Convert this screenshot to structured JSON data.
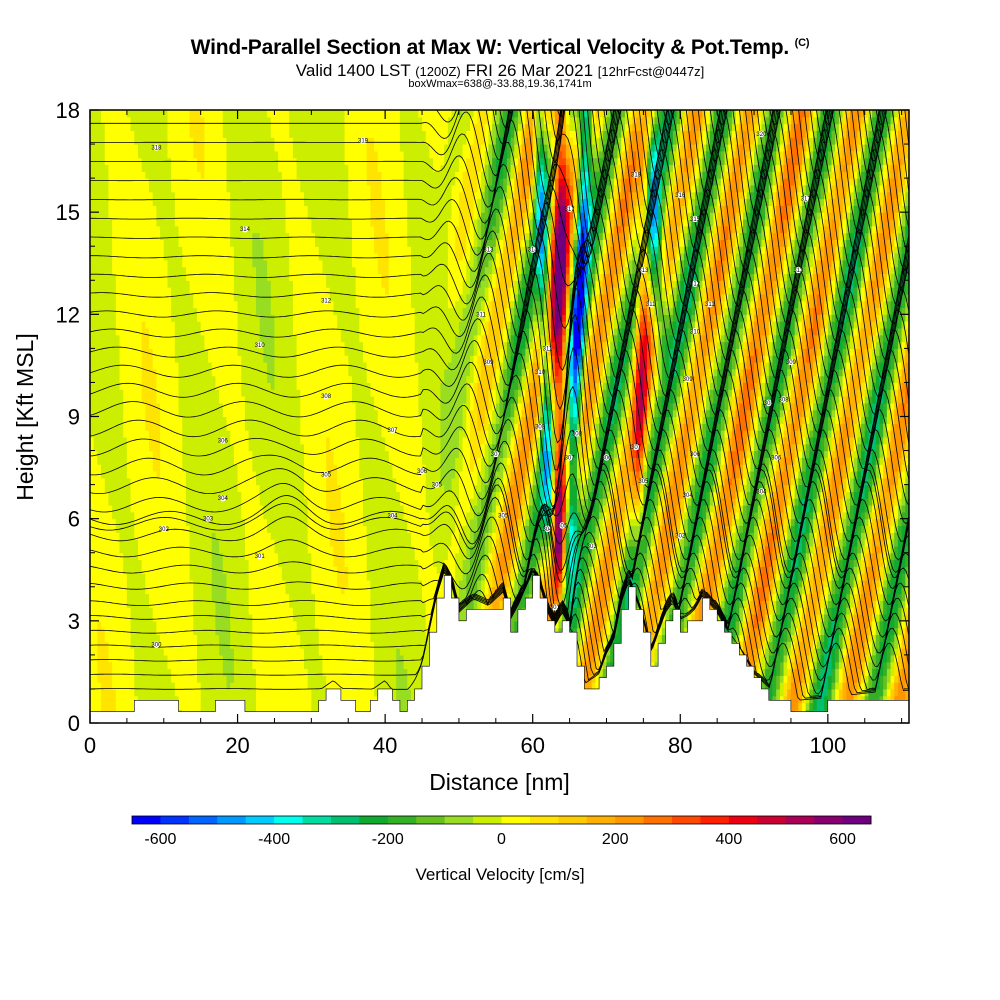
{
  "chart_data": {
    "type": "heatmap",
    "title": "Wind-Parallel Section at Max W: Vertical Velocity & Pot.Temp.",
    "copyright": "(C)",
    "subtitle_prefix": "Valid 1400 LST",
    "subtitle_utc": "(1200Z)",
    "subtitle_date": "FRI 26 Mar 2021",
    "subtitle_fcst": "[12hrFcst@0447z]",
    "box_info": "boxWmax=638@-33.88,19.36,1741m",
    "xlabel": "Distance [nm]",
    "ylabel": "Height [Kft MSL]",
    "xlim": [
      0,
      111
    ],
    "ylim": [
      0,
      18
    ],
    "x_ticks": [
      0,
      20,
      40,
      60,
      80,
      100
    ],
    "y_ticks": [
      0,
      3,
      6,
      9,
      12,
      15,
      18
    ],
    "x_tick_labels": [
      "0",
      "20",
      "40",
      "60",
      "80",
      "100"
    ],
    "y_tick_labels": [
      "0",
      "3",
      "6",
      "9",
      "12",
      "15",
      "18"
    ],
    "colorbar": {
      "label": "Vertical Velocity [cm/s]",
      "min": -650,
      "max": 650,
      "step": 50,
      "tick_values": [
        -600,
        -400,
        -200,
        0,
        200,
        400,
        600
      ],
      "tick_labels": [
        "-600",
        "-400",
        "-200",
        "0",
        "200",
        "400",
        "600"
      ],
      "colors": [
        "#0000ff",
        "#0033ff",
        "#0066ff",
        "#0099ff",
        "#00ccff",
        "#00ffee",
        "#00dda0",
        "#00c070",
        "#10aa30",
        "#33b025",
        "#66c020",
        "#99dd22",
        "#ccee00",
        "#ffff00",
        "#ffe400",
        "#ffcc00",
        "#ffb000",
        "#ff9600",
        "#ff7000",
        "#ff4800",
        "#ff2000",
        "#ee0010",
        "#cc0030",
        "#aa0055",
        "#880070",
        "#6e0080"
      ]
    },
    "terrain_kft": [
      {
        "x": 0,
        "h": 0.3
      },
      {
        "x": 5,
        "h": 0.3
      },
      {
        "x": 7,
        "h": 0.7
      },
      {
        "x": 10,
        "h": 0.7
      },
      {
        "x": 12,
        "h": 0.4
      },
      {
        "x": 16,
        "h": 0.3
      },
      {
        "x": 18,
        "h": 0.7
      },
      {
        "x": 21,
        "h": 0.4
      },
      {
        "x": 23,
        "h": 0.3
      },
      {
        "x": 30,
        "h": 0.3
      },
      {
        "x": 31,
        "h": 0.7
      },
      {
        "x": 33,
        "h": 1.0
      },
      {
        "x": 35,
        "h": 0.6
      },
      {
        "x": 37,
        "h": 0.3
      },
      {
        "x": 38,
        "h": 0.7
      },
      {
        "x": 40,
        "h": 1.0
      },
      {
        "x": 42,
        "h": 0.4
      },
      {
        "x": 43,
        "h": 0.7
      },
      {
        "x": 44,
        "h": 1.0
      },
      {
        "x": 45,
        "h": 1.5
      },
      {
        "x": 46,
        "h": 2.5
      },
      {
        "x": 47,
        "h": 3.5
      },
      {
        "x": 48,
        "h": 4.2
      },
      {
        "x": 49,
        "h": 3.8
      },
      {
        "x": 50,
        "h": 3.0
      },
      {
        "x": 52,
        "h": 3.4
      },
      {
        "x": 54,
        "h": 3.2
      },
      {
        "x": 56,
        "h": 3.6
      },
      {
        "x": 57,
        "h": 2.8
      },
      {
        "x": 58,
        "h": 3.2
      },
      {
        "x": 60,
        "h": 4.2
      },
      {
        "x": 61,
        "h": 3.8
      },
      {
        "x": 62,
        "h": 3.0
      },
      {
        "x": 63,
        "h": 2.6
      },
      {
        "x": 64,
        "h": 3.0
      },
      {
        "x": 65,
        "h": 2.6
      },
      {
        "x": 66,
        "h": 1.7
      },
      {
        "x": 67,
        "h": 0.9
      },
      {
        "x": 69,
        "h": 1.2
      },
      {
        "x": 70,
        "h": 1.8
      },
      {
        "x": 71,
        "h": 2.2
      },
      {
        "x": 72,
        "h": 3.3
      },
      {
        "x": 73,
        "h": 3.9
      },
      {
        "x": 74,
        "h": 3.4
      },
      {
        "x": 75,
        "h": 2.8
      },
      {
        "x": 76,
        "h": 1.8
      },
      {
        "x": 77,
        "h": 2.4
      },
      {
        "x": 78,
        "h": 3.0
      },
      {
        "x": 79,
        "h": 3.3
      },
      {
        "x": 80,
        "h": 2.8
      },
      {
        "x": 81,
        "h": 2.9
      },
      {
        "x": 82,
        "h": 3.1
      },
      {
        "x": 83,
        "h": 3.5
      },
      {
        "x": 85,
        "h": 3.0
      },
      {
        "x": 86,
        "h": 2.6
      },
      {
        "x": 88,
        "h": 2.0
      },
      {
        "x": 90,
        "h": 1.2
      },
      {
        "x": 92,
        "h": 0.8
      },
      {
        "x": 95,
        "h": 0.4
      },
      {
        "x": 100,
        "h": 0.5
      },
      {
        "x": 104,
        "h": 0.6
      },
      {
        "x": 108,
        "h": 0.7
      },
      {
        "x": 111,
        "h": 0.7
      }
    ],
    "isentrope_labels": [
      {
        "x": 9,
        "z": 2.3,
        "text": "300"
      },
      {
        "x": 10,
        "z": 5.7,
        "text": "302"
      },
      {
        "x": 16,
        "z": 6.0,
        "text": "303"
      },
      {
        "x": 18,
        "z": 6.6,
        "text": "304"
      },
      {
        "x": 18,
        "z": 8.3,
        "text": "306"
      },
      {
        "x": 23,
        "z": 4.9,
        "text": "301"
      },
      {
        "x": 23,
        "z": 11.1,
        "text": "310"
      },
      {
        "x": 21,
        "z": 14.5,
        "text": "314"
      },
      {
        "x": 9,
        "z": 16.9,
        "text": "318"
      },
      {
        "x": 32,
        "z": 7.3,
        "text": "305"
      },
      {
        "x": 32,
        "z": 9.6,
        "text": "308"
      },
      {
        "x": 32,
        "z": 12.4,
        "text": "312"
      },
      {
        "x": 37,
        "z": 17.1,
        "text": "319"
      },
      {
        "x": 41,
        "z": 8.6,
        "text": "307"
      },
      {
        "x": 41,
        "z": 6.1,
        "text": "304"
      },
      {
        "x": 45,
        "z": 7.4,
        "text": "306"
      },
      {
        "x": 47,
        "z": 7.0,
        "text": "305"
      },
      {
        "x": 54,
        "z": 10.6,
        "text": "309"
      },
      {
        "x": 53,
        "z": 12.0,
        "text": "311"
      },
      {
        "x": 54,
        "z": 13.9,
        "text": "313"
      },
      {
        "x": 55,
        "z": 7.9,
        "text": "307"
      },
      {
        "x": 56,
        "z": 6.1,
        "text": "305"
      },
      {
        "x": 60,
        "z": 13.9,
        "text": "314"
      },
      {
        "x": 61,
        "z": 10.3,
        "text": "310"
      },
      {
        "x": 61,
        "z": 8.7,
        "text": "308"
      },
      {
        "x": 62,
        "z": 5.7,
        "text": "304"
      },
      {
        "x": 63,
        "z": 3.4,
        "text": "301"
      },
      {
        "x": 62,
        "z": 11.0,
        "text": "311"
      },
      {
        "x": 64,
        "z": 5.8,
        "text": "305"
      },
      {
        "x": 65,
        "z": 7.8,
        "text": "307"
      },
      {
        "x": 65,
        "z": 15.1,
        "text": "317"
      },
      {
        "x": 66,
        "z": 8.5,
        "text": "308"
      },
      {
        "x": 68,
        "z": 5.2,
        "text": "303"
      },
      {
        "x": 70,
        "z": 7.8,
        "text": "306"
      },
      {
        "x": 74,
        "z": 8.1,
        "text": "307"
      },
      {
        "x": 75,
        "z": 7.1,
        "text": "305"
      },
      {
        "x": 75,
        "z": 13.3,
        "text": "313"
      },
      {
        "x": 76,
        "z": 12.3,
        "text": "311"
      },
      {
        "x": 74,
        "z": 16.1,
        "text": "318"
      },
      {
        "x": 80,
        "z": 15.5,
        "text": "316"
      },
      {
        "x": 82,
        "z": 14.8,
        "text": "315"
      },
      {
        "x": 82,
        "z": 12.9,
        "text": "312"
      },
      {
        "x": 82,
        "z": 11.5,
        "text": "310"
      },
      {
        "x": 81,
        "z": 10.1,
        "text": "309"
      },
      {
        "x": 82,
        "z": 7.9,
        "text": "306"
      },
      {
        "x": 81,
        "z": 6.7,
        "text": "304"
      },
      {
        "x": 80,
        "z": 5.5,
        "text": "302"
      },
      {
        "x": 84,
        "z": 12.3,
        "text": "311"
      },
      {
        "x": 91,
        "z": 17.3,
        "text": "320"
      },
      {
        "x": 97,
        "z": 15.4,
        "text": "317"
      },
      {
        "x": 96,
        "z": 13.3,
        "text": "313"
      },
      {
        "x": 95,
        "z": 10.6,
        "text": "309"
      },
      {
        "x": 92,
        "z": 9.4,
        "text": "308"
      },
      {
        "x": 94,
        "z": 9.5,
        "text": "308"
      },
      {
        "x": 93,
        "z": 7.8,
        "text": "306"
      },
      {
        "x": 91,
        "z": 6.8,
        "text": "304"
      }
    ]
  }
}
